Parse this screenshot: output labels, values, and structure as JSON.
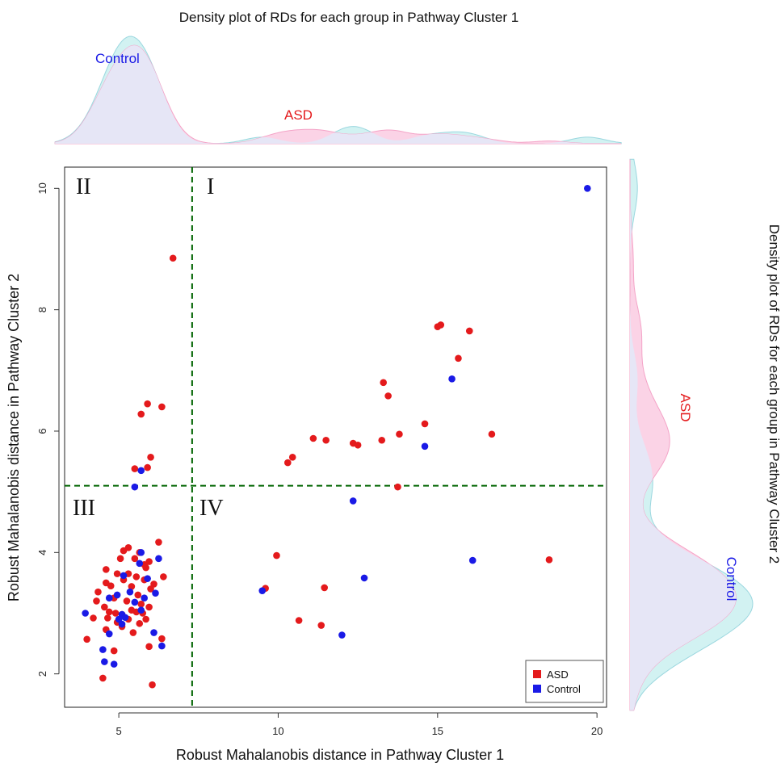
{
  "colors": {
    "asd": "#e41a1c",
    "control": "#1a1ae6",
    "asd_fill": "#fbd3e6",
    "control_fill": "#d2f2f2",
    "overlap_fill": "#e6e6f6",
    "cutoff_line": "#006400"
  },
  "top_density": {
    "title": "Density plot of RDs for each group in Pathway Cluster 1",
    "label_control": "Control",
    "label_asd": "ASD"
  },
  "right_density": {
    "title": "Density plot of RDs for each group in  Pathway Cluster 2",
    "label_control": "Control",
    "label_asd": "ASD"
  },
  "chart_data": {
    "type": "scatter",
    "xlabel": "Robust Mahalanobis distance in Pathway Cluster 1",
    "ylabel": "Robust Mahalanobis distance in Pathway Cluster 2",
    "xlim": [
      3.3,
      20.3
    ],
    "ylim": [
      1.45,
      10.35
    ],
    "x_ticks": [
      5,
      10,
      15,
      20
    ],
    "y_ticks": [
      2,
      4,
      6,
      8,
      10
    ],
    "x_cutoff": 7.3,
    "y_cutoff": 5.1,
    "quadrants": {
      "q1": "I",
      "q2": "II",
      "q3": "III",
      "q4": "IV"
    },
    "legend": {
      "position": "bottom-right",
      "entries": [
        "ASD",
        "Control"
      ]
    },
    "series": [
      {
        "name": "ASD",
        "color": "#e41a1c",
        "points": [
          [
            6.7,
            8.85
          ],
          [
            5.9,
            6.45
          ],
          [
            6.35,
            6.4
          ],
          [
            5.7,
            6.28
          ],
          [
            6.0,
            5.57
          ],
          [
            5.9,
            5.4
          ],
          [
            5.5,
            5.38
          ],
          [
            15.1,
            7.75
          ],
          [
            15.0,
            7.72
          ],
          [
            16.0,
            7.65
          ],
          [
            15.65,
            7.2
          ],
          [
            13.3,
            6.8
          ],
          [
            13.45,
            6.58
          ],
          [
            14.6,
            6.12
          ],
          [
            16.7,
            5.95
          ],
          [
            13.8,
            5.95
          ],
          [
            11.1,
            5.88
          ],
          [
            11.5,
            5.85
          ],
          [
            13.25,
            5.85
          ],
          [
            12.35,
            5.8
          ],
          [
            12.5,
            5.77
          ],
          [
            10.45,
            5.57
          ],
          [
            10.3,
            5.48
          ],
          [
            13.75,
            5.08
          ],
          [
            9.95,
            3.95
          ],
          [
            11.45,
            3.42
          ],
          [
            9.6,
            3.41
          ],
          [
            10.65,
            2.88
          ],
          [
            11.35,
            2.8
          ],
          [
            18.5,
            3.88
          ],
          [
            6.25,
            4.17
          ],
          [
            5.3,
            4.08
          ],
          [
            5.15,
            4.03
          ],
          [
            5.65,
            4.0
          ],
          [
            5.05,
            3.9
          ],
          [
            5.5,
            3.9
          ],
          [
            5.95,
            3.85
          ],
          [
            5.8,
            3.8
          ],
          [
            5.85,
            3.75
          ],
          [
            4.6,
            3.72
          ],
          [
            4.95,
            3.65
          ],
          [
            5.3,
            3.65
          ],
          [
            5.55,
            3.6
          ],
          [
            6.4,
            3.6
          ],
          [
            5.15,
            3.55
          ],
          [
            5.8,
            3.55
          ],
          [
            4.6,
            3.5
          ],
          [
            6.1,
            3.48
          ],
          [
            4.75,
            3.45
          ],
          [
            5.4,
            3.44
          ],
          [
            6.0,
            3.4
          ],
          [
            4.35,
            3.35
          ],
          [
            5.6,
            3.3
          ],
          [
            4.85,
            3.25
          ],
          [
            5.25,
            3.2
          ],
          [
            4.3,
            3.2
          ],
          [
            5.7,
            3.15
          ],
          [
            4.55,
            3.1
          ],
          [
            5.95,
            3.1
          ],
          [
            5.4,
            3.05
          ],
          [
            4.7,
            3.02
          ],
          [
            5.55,
            3.02
          ],
          [
            4.9,
            3.0
          ],
          [
            5.75,
            3.0
          ],
          [
            5.1,
            2.98
          ],
          [
            4.2,
            2.92
          ],
          [
            5.3,
            2.9
          ],
          [
            4.65,
            2.92
          ],
          [
            5.85,
            2.9
          ],
          [
            4.95,
            2.85
          ],
          [
            5.65,
            2.83
          ],
          [
            5.1,
            2.78
          ],
          [
            4.6,
            2.73
          ],
          [
            5.45,
            2.68
          ],
          [
            4.0,
            2.57
          ],
          [
            6.35,
            2.58
          ],
          [
            5.95,
            2.45
          ],
          [
            4.85,
            2.38
          ],
          [
            4.5,
            1.93
          ],
          [
            6.05,
            1.82
          ]
        ]
      },
      {
        "name": "Control",
        "color": "#1a1ae6",
        "points": [
          [
            19.7,
            10.0
          ],
          [
            15.45,
            6.86
          ],
          [
            14.6,
            5.75
          ],
          [
            5.7,
            5.35
          ],
          [
            5.5,
            5.08
          ],
          [
            12.35,
            4.85
          ],
          [
            16.1,
            3.87
          ],
          [
            12.7,
            3.58
          ],
          [
            9.5,
            3.37
          ],
          [
            12.0,
            2.64
          ],
          [
            5.7,
            4.0
          ],
          [
            6.25,
            3.9
          ],
          [
            5.65,
            3.82
          ],
          [
            5.15,
            3.62
          ],
          [
            5.9,
            3.57
          ],
          [
            5.35,
            3.35
          ],
          [
            6.15,
            3.33
          ],
          [
            4.95,
            3.3
          ],
          [
            5.8,
            3.25
          ],
          [
            4.7,
            3.25
          ],
          [
            5.5,
            3.18
          ],
          [
            3.95,
            3.0
          ],
          [
            5.1,
            2.98
          ],
          [
            5.2,
            2.93
          ],
          [
            5.0,
            2.9
          ],
          [
            5.7,
            3.05
          ],
          [
            5.1,
            2.82
          ],
          [
            4.7,
            2.66
          ],
          [
            6.1,
            2.68
          ],
          [
            6.35,
            2.46
          ],
          [
            4.5,
            2.4
          ],
          [
            4.55,
            2.2
          ],
          [
            4.85,
            2.16
          ]
        ]
      }
    ]
  }
}
